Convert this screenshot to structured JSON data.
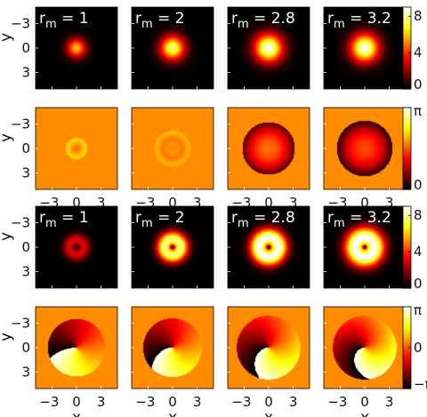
{
  "chart_data": {
    "type": "heatmap",
    "description_layout": "4x4 grid of 2D field maps",
    "x_ticks": [
      "−3",
      "0",
      "3"
    ],
    "y_ticks": [
      "−3",
      "0",
      "3"
    ],
    "xlabel": "x",
    "ylabel": "y",
    "xlim": [
      -5,
      5
    ],
    "ylim": [
      -5,
      5
    ],
    "rm_values": [
      1,
      2,
      2.8,
      3.2
    ],
    "panel_labels": [
      "r_m = 1",
      "r_m = 2",
      "r_m = 2.8",
      "r_m = 3.2"
    ],
    "rows": [
      {
        "kind": "amplitude",
        "profile": "gaussian",
        "peak": [
          6.0,
          8.0,
          9.0,
          9.0
        ],
        "width": [
          0.9,
          1.15,
          1.35,
          1.35
        ],
        "colorbar": {
          "ticks": [
            "0",
            "4",
            "8"
          ],
          "range": [
            0,
            9
          ],
          "colormap": "hot"
        },
        "panel_labels_shown": true
      },
      {
        "kind": "phase",
        "profile": "radial",
        "disk_radius": [
          0,
          2.2,
          3.2,
          3.4
        ],
        "colorbar": {
          "ticks": [
            "0",
            "π"
          ],
          "range": [
            0,
            3.14159
          ],
          "colormap": "hot"
        },
        "panel_labels_shown": false
      },
      {
        "kind": "amplitude",
        "profile": "ring",
        "peak": [
          3.0,
          8.0,
          9.0,
          9.0
        ],
        "ring_radius": [
          0.9,
          1.0,
          1.2,
          1.2
        ],
        "colorbar": {
          "ticks": [
            "0",
            "4",
            "8"
          ],
          "range": [
            0,
            9
          ],
          "colormap": "hot"
        },
        "panel_labels_shown": true
      },
      {
        "kind": "phase",
        "profile": "vortex",
        "disk_radius": [
          3.5,
          3.6,
          3.9,
          3.9
        ],
        "colorbar": {
          "ticks": [
            "−π",
            "0",
            "π"
          ],
          "range": [
            -3.14159,
            3.14159
          ],
          "colormap": "hot"
        },
        "panel_labels_shown": false
      }
    ],
    "colors": {
      "background_phase": "#ff8c00",
      "colormap": "hot"
    }
  }
}
